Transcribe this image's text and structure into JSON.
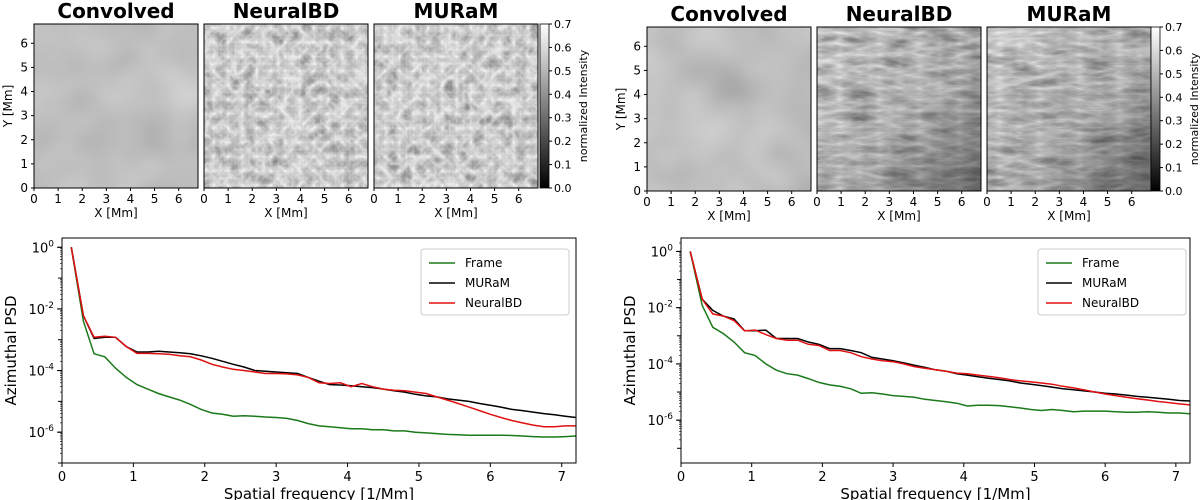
{
  "image_panels": [
    {
      "titles": [
        "Convolved",
        "NeuralBD",
        "MURaM"
      ],
      "xlabel": "X [Mm]",
      "ylabel": "Y [Mm]",
      "xticks": [
        "0",
        "1",
        "2",
        "3",
        "4",
        "5",
        "6"
      ],
      "yticks": [
        "0",
        "1",
        "2",
        "3",
        "4",
        "5",
        "6"
      ],
      "colorbar": {
        "label": "normalized Intensity",
        "range": [
          0.0,
          0.7
        ],
        "ticks": [
          "0.0",
          "0.1",
          "0.2",
          "0.3",
          "0.4",
          "0.5",
          "0.6",
          "0.7"
        ]
      }
    },
    {
      "titles": [
        "Convolved",
        "NeuralBD",
        "MURaM"
      ],
      "xlabel": "X [Mm]",
      "ylabel": "Y [Mm]",
      "xticks": [
        "0",
        "1",
        "2",
        "3",
        "4",
        "5",
        "6"
      ],
      "yticks": [
        "0",
        "1",
        "2",
        "3",
        "4",
        "5",
        "6"
      ],
      "colorbar": {
        "label": "normalized Intensity",
        "range": [
          0.0,
          0.7
        ],
        "ticks": [
          "0.0",
          "0.1",
          "0.2",
          "0.3",
          "0.4",
          "0.5",
          "0.6",
          "0.7"
        ]
      }
    }
  ],
  "chart_data": [
    {
      "type": "line",
      "title": "",
      "xlabel": "Spatial frequency [1/Mm]",
      "ylabel": "Azimuthal PSD",
      "yscale": "log",
      "xlim": [
        0,
        7.2
      ],
      "ylim": [
        1e-07,
        2
      ],
      "xticks": [
        0,
        1,
        2,
        3,
        4,
        5,
        6,
        7
      ],
      "yticks": [
        {
          "v": 1,
          "label": "10^0"
        },
        {
          "v": 0.01,
          "label": "10^-2"
        },
        {
          "v": 0.0001,
          "label": "10^-4"
        },
        {
          "v": 1e-06,
          "label": "10^-6"
        }
      ],
      "legend": "top-right",
      "x": [
        0.13,
        0.3,
        0.45,
        0.6,
        0.75,
        0.9,
        1.05,
        1.2,
        1.35,
        1.5,
        1.65,
        1.8,
        1.95,
        2.1,
        2.25,
        2.4,
        2.55,
        2.7,
        2.85,
        3.0,
        3.15,
        3.3,
        3.45,
        3.6,
        3.75,
        3.9,
        4.05,
        4.2,
        4.35,
        4.5,
        4.65,
        4.8,
        4.95,
        5.1,
        5.25,
        5.4,
        5.55,
        5.7,
        5.85,
        6.0,
        6.15,
        6.3,
        6.45,
        6.6,
        6.75,
        6.9,
        7.05,
        7.2
      ],
      "series": [
        {
          "name": "Frame",
          "color": "#1a7a1a",
          "values": [
            1.0,
            0.004,
            0.00035,
            0.00028,
            0.00012,
            6e-05,
            3.5e-05,
            2.5e-05,
            1.8e-05,
            1.4e-05,
            1.1e-05,
            8e-06,
            5.5e-06,
            4.2e-06,
            3.8e-06,
            3.3e-06,
            3.4e-06,
            3.3e-06,
            3.1e-06,
            3e-06,
            2.8e-06,
            2.4e-06,
            1.9e-06,
            1.6e-06,
            1.5e-06,
            1.4e-06,
            1.3e-06,
            1.3e-06,
            1.2e-06,
            1.2e-06,
            1.1e-06,
            1.1e-06,
            1e-06,
            9.5e-07,
            9e-07,
            8.5e-07,
            8.2e-07,
            8e-07,
            8e-07,
            8e-07,
            8e-07,
            7.8e-07,
            7.5e-07,
            7.2e-07,
            7e-07,
            7e-07,
            7.2e-07,
            7.5e-07
          ]
        },
        {
          "name": "MURaM",
          "color": "#000000",
          "values": [
            1.0,
            0.006,
            0.0011,
            0.0012,
            0.0012,
            0.0006,
            0.0004,
            0.0004,
            0.00042,
            0.0004,
            0.00038,
            0.00035,
            0.0003,
            0.00025,
            0.0002,
            0.00016,
            0.00013,
            0.0001,
            9.5e-05,
            9e-05,
            8.5e-05,
            8e-05,
            6e-05,
            4.5e-05,
            3.5e-05,
            3.4e-05,
            3.2e-05,
            3e-05,
            2.8e-05,
            2.5e-05,
            2.2e-05,
            2e-05,
            1.7e-05,
            1.5e-05,
            1.4e-05,
            1.2e-05,
            1.1e-05,
            1e-05,
            8.5e-06,
            7.5e-06,
            6.5e-06,
            5.5e-06,
            5e-06,
            4.5e-06,
            4e-06,
            3.7e-06,
            3.3e-06,
            3e-06
          ]
        },
        {
          "name": "NeuralBD",
          "color": "#e01010",
          "values": [
            1.0,
            0.006,
            0.0012,
            0.0013,
            0.0012,
            0.0006,
            0.00036,
            0.00036,
            0.00035,
            0.00034,
            0.0003,
            0.00028,
            0.00022,
            0.00016,
            0.00013,
            0.00011,
            0.0001,
            9e-05,
            8e-05,
            8e-05,
            7.8e-05,
            7.2e-05,
            6e-05,
            4e-05,
            3.8e-05,
            4e-05,
            3e-05,
            3.8e-05,
            3e-05,
            2.5e-05,
            2.3e-05,
            2.2e-05,
            2e-05,
            1.8e-05,
            1.4e-05,
            1.1e-05,
            8.5e-06,
            6.5e-06,
            5e-06,
            3.8e-06,
            3e-06,
            2.4e-06,
            2e-06,
            1.7e-06,
            1.5e-06,
            1.5e-06,
            1.6e-06,
            1.6e-06
          ]
        }
      ]
    },
    {
      "type": "line",
      "title": "",
      "xlabel": "Spatial frequency [1/Mm]",
      "ylabel": "Azimuthal PSD",
      "yscale": "log",
      "xlim": [
        0,
        7.2
      ],
      "ylim": [
        3e-08,
        3
      ],
      "xticks": [
        0,
        1,
        2,
        3,
        4,
        5,
        6,
        7
      ],
      "yticks": [
        {
          "v": 1,
          "label": "10^0"
        },
        {
          "v": 0.01,
          "label": "10^-2"
        },
        {
          "v": 0.0001,
          "label": "10^-4"
        },
        {
          "v": 1e-06,
          "label": "10^-6"
        }
      ],
      "legend": "top-right",
      "x": [
        0.13,
        0.3,
        0.45,
        0.6,
        0.75,
        0.9,
        1.05,
        1.2,
        1.35,
        1.5,
        1.65,
        1.8,
        1.95,
        2.1,
        2.25,
        2.4,
        2.55,
        2.7,
        2.85,
        3.0,
        3.15,
        3.3,
        3.45,
        3.6,
        3.75,
        3.9,
        4.05,
        4.2,
        4.35,
        4.5,
        4.65,
        4.8,
        4.95,
        5.1,
        5.25,
        5.4,
        5.55,
        5.7,
        5.85,
        6.0,
        6.15,
        6.3,
        6.45,
        6.6,
        6.75,
        6.9,
        7.05,
        7.2
      ],
      "series": [
        {
          "name": "Frame",
          "color": "#1a7a1a",
          "values": [
            1.0,
            0.012,
            0.002,
            0.0012,
            0.0006,
            0.00025,
            0.0002,
            0.0001,
            6e-05,
            4.5e-05,
            4e-05,
            3e-05,
            2.2e-05,
            1.8e-05,
            1.6e-05,
            1.3e-05,
            9e-06,
            9.5e-06,
            8.5e-06,
            7.5e-06,
            7e-06,
            6.5e-06,
            5.5e-06,
            5e-06,
            4.5e-06,
            4e-06,
            3.2e-06,
            3.4e-06,
            3.4e-06,
            3.3e-06,
            3e-06,
            2.7e-06,
            2.4e-06,
            2.2e-06,
            2.4e-06,
            2.2e-06,
            2e-06,
            2.1e-06,
            2.1e-06,
            2.1e-06,
            2e-06,
            1.9e-06,
            1.9e-06,
            2e-06,
            1.9e-06,
            1.8e-06,
            1.8e-06,
            1.7e-06
          ]
        },
        {
          "name": "MURaM",
          "color": "#000000",
          "values": [
            1.0,
            0.02,
            0.008,
            0.005,
            0.004,
            0.0015,
            0.0015,
            0.0016,
            0.0008,
            0.0008,
            0.0008,
            0.0006,
            0.0005,
            0.00035,
            0.00035,
            0.0003,
            0.00025,
            0.00017,
            0.00015,
            0.00013,
            0.00011,
            9e-05,
            7.5e-05,
            6.2e-05,
            5.5e-05,
            4.5e-05,
            4e-05,
            3.5e-05,
            3.1e-05,
            2.8e-05,
            2.5e-05,
            2.1e-05,
            1.9e-05,
            1.7e-05,
            1.5e-05,
            1.3e-05,
            1.2e-05,
            1.1e-05,
            1e-05,
            9e-06,
            8.5e-06,
            7.8e-06,
            7e-06,
            6.5e-06,
            6e-06,
            5.5e-06,
            5e-06,
            4.8e-06
          ]
        },
        {
          "name": "NeuralBD",
          "color": "#e01010",
          "values": [
            1.0,
            0.02,
            0.006,
            0.005,
            0.0035,
            0.0015,
            0.0016,
            0.0011,
            0.0008,
            0.0007,
            0.0007,
            0.0005,
            0.00045,
            0.0003,
            0.0003,
            0.00025,
            0.00018,
            0.00015,
            0.00013,
            0.00012,
            0.0001,
            8e-05,
            7e-05,
            6.2e-05,
            5.5e-05,
            4.7e-05,
            4.5e-05,
            4e-05,
            3.6e-05,
            3.2e-05,
            2.8e-05,
            2.5e-05,
            2.3e-05,
            2.1e-05,
            1.9e-05,
            1.6e-05,
            1.4e-05,
            1.2e-05,
            1e-05,
            8.5e-06,
            7.5e-06,
            6.5e-06,
            5.8e-06,
            5.2e-06,
            4.6e-06,
            4.2e-06,
            3.8e-06,
            3.5e-06
          ]
        }
      ]
    }
  ]
}
